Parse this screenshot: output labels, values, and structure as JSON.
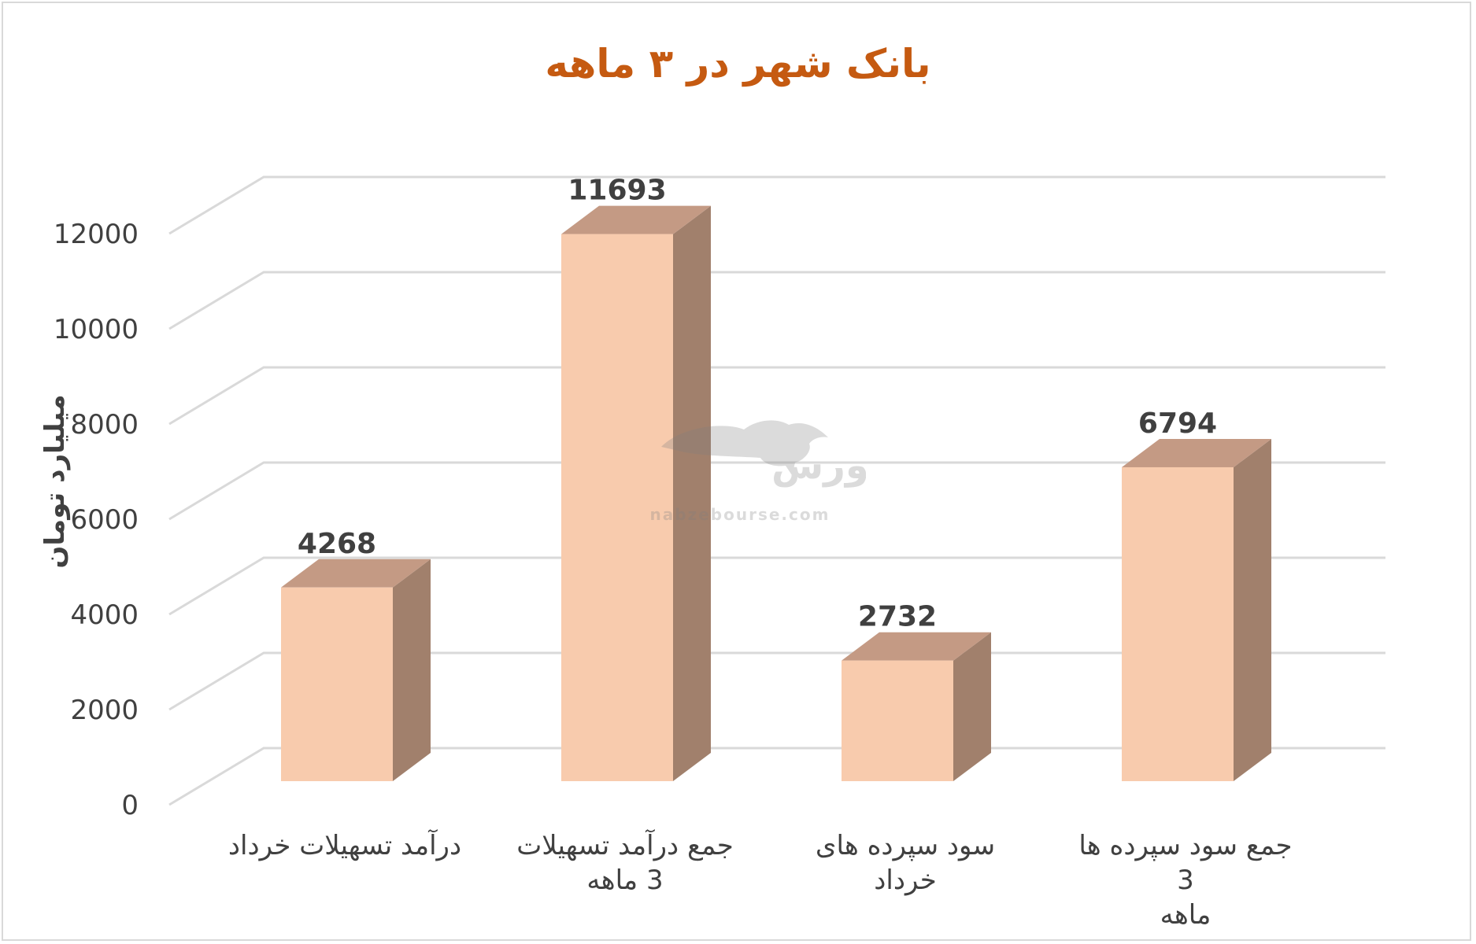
{
  "chart_data": {
    "type": "bar",
    "title": "بانک شهر در ۳ ماهه",
    "ylabel": "میلیارد تومان",
    "xlabel": "",
    "ylim": [
      0,
      12000
    ],
    "yticks": [
      0,
      2000,
      4000,
      6000,
      8000,
      10000,
      12000
    ],
    "categories": [
      [
        "درآمد تسهیلات خرداد"
      ],
      [
        "جمع درآمد تسهیلات",
        "3 ماهه"
      ],
      [
        "سود سپرده های",
        "خرداد"
      ],
      [
        "جمع سود سپرده ها 3",
        "ماهه"
      ]
    ],
    "values": [
      4268,
      11693,
      2732,
      6794
    ],
    "data_labels": [
      "4268",
      "11693",
      "2732",
      "6794"
    ],
    "grid": true,
    "legend": "none",
    "style": "3d-column"
  },
  "colors": {
    "title": "#c55a11",
    "bar_front": "#f8cbad",
    "bar_top": "#c49a84",
    "bar_side": "#a1806c",
    "gridline": "#d9d9d9",
    "text": "#404040"
  },
  "watermark": {
    "brand": "نبض بورس",
    "domain": "nabzebourse.com"
  }
}
